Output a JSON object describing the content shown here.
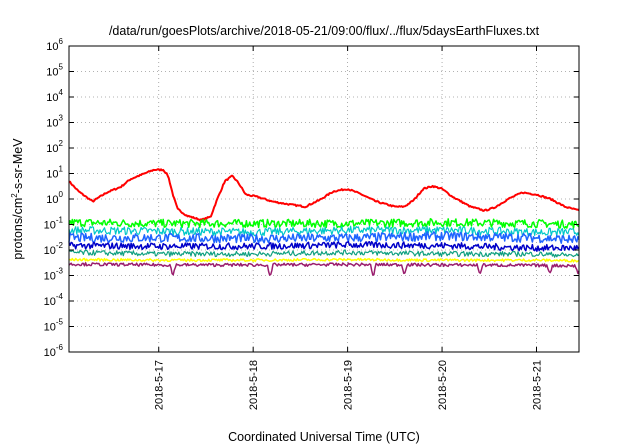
{
  "chart_data": {
    "type": "line",
    "title": "/data/run/goesPlots/archive/2018-05-21/09:00/flux/../flux/5daysEarthFluxes.txt",
    "xlabel": "Coordinated Universal Time (UTC)",
    "ylabel": {
      "pre": "protons/cm",
      "sup": "2",
      "post": "-s-sr-MeV"
    },
    "yscale": "log",
    "ylim": [
      1e-06,
      1000000.0
    ],
    "xlim": [
      -0.95,
      4.45
    ],
    "grid": true,
    "x_ticks": [
      {
        "x": 0,
        "label": "2018-5-17"
      },
      {
        "x": 1,
        "label": "2018-5-18"
      },
      {
        "x": 2,
        "label": "2018-5-19"
      },
      {
        "x": 3,
        "label": "2018-5-20"
      },
      {
        "x": 4,
        "label": "2018-5-21"
      }
    ],
    "y_ticks": [
      {
        "exp": -6,
        "label": "10",
        "sup": "-6"
      },
      {
        "exp": -5,
        "label": "10",
        "sup": "-5"
      },
      {
        "exp": -4,
        "label": "10",
        "sup": "-4"
      },
      {
        "exp": -3,
        "label": "10",
        "sup": "-3"
      },
      {
        "exp": -2,
        "label": "10",
        "sup": "-2"
      },
      {
        "exp": -1,
        "label": "10",
        "sup": "-1"
      },
      {
        "exp": 0,
        "label": "10",
        "sup": "0"
      },
      {
        "exp": 1,
        "label": "10",
        "sup": "1"
      },
      {
        "exp": 2,
        "label": "10",
        "sup": "2"
      },
      {
        "exp": 3,
        "label": "10",
        "sup": "3"
      },
      {
        "exp": 4,
        "label": "10",
        "sup": "4"
      },
      {
        "exp": 5,
        "label": "10",
        "sup": "5"
      },
      {
        "exp": 6,
        "label": "10",
        "sup": "6"
      }
    ],
    "series": [
      {
        "color": "#ff0000",
        "width": 2,
        "jitter": 0.03,
        "points": [
          [
            -0.95,
            5
          ],
          [
            -0.85,
            2
          ],
          [
            -0.7,
            0.8
          ],
          [
            -0.55,
            1.8
          ],
          [
            -0.4,
            3
          ],
          [
            -0.3,
            6
          ],
          [
            -0.15,
            10
          ],
          [
            -0.05,
            14
          ],
          [
            0.05,
            14
          ],
          [
            0.1,
            8
          ],
          [
            0.15,
            1.5
          ],
          [
            0.2,
            0.4
          ],
          [
            0.3,
            0.22
          ],
          [
            0.45,
            0.15
          ],
          [
            0.55,
            0.2
          ],
          [
            0.62,
            1
          ],
          [
            0.7,
            5
          ],
          [
            0.78,
            8
          ],
          [
            0.85,
            4
          ],
          [
            0.92,
            1.5
          ],
          [
            1.05,
            1.2
          ],
          [
            1.2,
            0.8
          ],
          [
            1.4,
            0.6
          ],
          [
            1.55,
            0.5
          ],
          [
            1.7,
            0.9
          ],
          [
            1.85,
            2
          ],
          [
            2.0,
            2.5
          ],
          [
            2.15,
            1.5
          ],
          [
            2.3,
            0.8
          ],
          [
            2.5,
            0.5
          ],
          [
            2.6,
            0.5
          ],
          [
            2.7,
            0.9
          ],
          [
            2.8,
            2.5
          ],
          [
            2.9,
            3.2
          ],
          [
            3.0,
            2.5
          ],
          [
            3.1,
            1.3
          ],
          [
            3.3,
            0.5
          ],
          [
            3.45,
            0.35
          ],
          [
            3.55,
            0.45
          ],
          [
            3.7,
            1.0
          ],
          [
            3.85,
            1.8
          ],
          [
            4.0,
            1.5
          ],
          [
            4.15,
            1.0
          ],
          [
            4.3,
            0.5
          ],
          [
            4.45,
            0.35
          ]
        ]
      },
      {
        "color": "#00ff00",
        "width": 1.5,
        "jitter": 0.16,
        "points": [
          [
            -0.95,
            0.12
          ],
          [
            0,
            0.11
          ],
          [
            1,
            0.11
          ],
          [
            2,
            0.11
          ],
          [
            3,
            0.12
          ],
          [
            4,
            0.11
          ],
          [
            4.45,
            0.1
          ]
        ]
      },
      {
        "color": "#00c8c8",
        "width": 1.2,
        "jitter": 0.16,
        "points": [
          [
            -0.95,
            0.06
          ],
          [
            0,
            0.055
          ],
          [
            1,
            0.05
          ],
          [
            2,
            0.06
          ],
          [
            3,
            0.06
          ],
          [
            4,
            0.05
          ],
          [
            4.45,
            0.05
          ]
        ]
      },
      {
        "color": "#1e64ff",
        "width": 1.5,
        "jitter": 0.18,
        "points": [
          [
            -0.95,
            0.03
          ],
          [
            0,
            0.03
          ],
          [
            1,
            0.028
          ],
          [
            2,
            0.03
          ],
          [
            3,
            0.035
          ],
          [
            4,
            0.03
          ],
          [
            4.45,
            0.025
          ]
        ]
      },
      {
        "color": "#0000c8",
        "width": 1.5,
        "jitter": 0.13,
        "points": [
          [
            -0.95,
            0.015
          ],
          [
            0,
            0.014
          ],
          [
            1,
            0.014
          ],
          [
            2,
            0.016
          ],
          [
            3,
            0.015
          ],
          [
            4,
            0.012
          ],
          [
            4.45,
            0.012
          ]
        ]
      },
      {
        "color": "#10a080",
        "width": 1.2,
        "jitter": 0.1,
        "points": [
          [
            -0.95,
            0.008
          ],
          [
            0,
            0.007
          ],
          [
            1,
            0.007
          ],
          [
            2,
            0.008
          ],
          [
            3,
            0.007
          ],
          [
            4,
            0.007
          ],
          [
            4.45,
            0.006
          ]
        ]
      },
      {
        "color": "#ffff00",
        "width": 1.5,
        "jitter": 0.05,
        "points": [
          [
            -0.95,
            0.0042
          ],
          [
            0,
            0.004
          ],
          [
            1,
            0.004
          ],
          [
            2,
            0.0042
          ],
          [
            3,
            0.004
          ],
          [
            4,
            0.004
          ],
          [
            4.45,
            0.0038
          ]
        ]
      },
      {
        "color": "#9a1e6e",
        "width": 1.5,
        "jitter": 0.06,
        "points": [
          [
            -0.95,
            0.0028
          ],
          [
            0,
            0.0026
          ],
          [
            1,
            0.0026
          ],
          [
            2,
            0.0027
          ],
          [
            3,
            0.0026
          ],
          [
            4,
            0.0025
          ],
          [
            4.45,
            0.0024
          ]
        ]
      }
    ],
    "dips": [
      [
        0.15,
        -0.45,
        7
      ],
      [
        1.18,
        -0.55,
        7
      ],
      [
        2.27,
        -0.5,
        7
      ],
      [
        2.6,
        -0.35,
        7
      ],
      [
        3.4,
        -0.35,
        7
      ],
      [
        4.14,
        -0.3,
        7
      ],
      [
        4.44,
        -0.3,
        7
      ]
    ]
  }
}
